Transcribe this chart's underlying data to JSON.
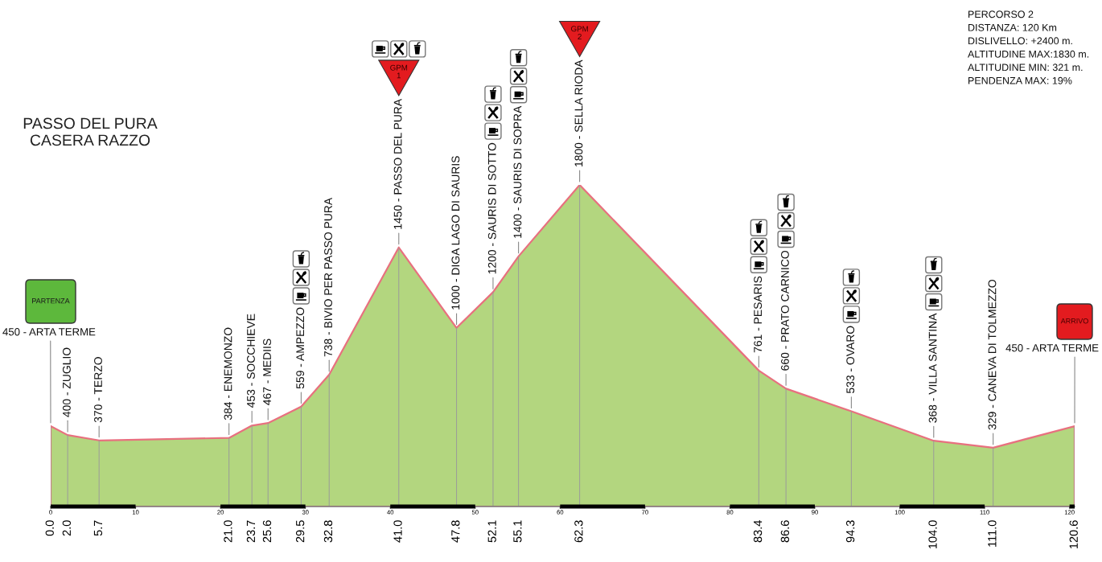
{
  "chart_data": {
    "type": "area",
    "title": "PASSO DEL PURA\nCASERA RAZZO",
    "x": [
      0.0,
      2.0,
      5.7,
      21.0,
      23.7,
      25.6,
      29.5,
      32.8,
      41.0,
      47.8,
      52.1,
      55.1,
      62.3,
      83.4,
      86.6,
      94.3,
      104.0,
      111.0,
      120.6
    ],
    "values": [
      450,
      400,
      370,
      384,
      453,
      467,
      559,
      738,
      1450,
      1000,
      1200,
      1400,
      1800,
      761,
      660,
      533,
      368,
      329,
      450
    ],
    "value_labels": [
      "450 - ARTA TERME",
      "400 - ZUGLIO",
      "370 - TERZO",
      "384 - ENEMONZO",
      "453 - SOCCHIEVE",
      "467 - MEDIIS",
      "559 - AMPEZZO",
      "738 - BIVIO PER PASSO PURA",
      "1450 - PASSO DEL PURA",
      "1000 - DIGA LAGO DI SAURIS",
      "1200 - SAURIS DI SOTTO",
      "1400 - SAURIS DI SOPRA",
      "1800 - SELLA RIODA",
      "761 - PESARIS",
      "660 - PRATO CARNICO",
      "533 - OVARO",
      "368 - VILLA SANTINA",
      "329 - CANEVA DI TOLMEZZO",
      "450 - ARTA TERME"
    ],
    "color": "#b3d67f",
    "grid": "x",
    "xlim": [
      0,
      120.6
    ],
    "xticks": [
      {
        "value": 0,
        "label": "0.0"
      },
      {
        "value": 2,
        "label": "2.0"
      },
      5.7,
      {
        "value": 21,
        "label": "21.0"
      },
      23.7,
      25.6,
      29.5,
      32.8,
      {
        "value": 41,
        "label": "41.0"
      },
      47.8,
      52.1,
      55.1,
      62.3,
      83.4,
      86.6,
      94.3,
      {
        "value": 104,
        "label": "104.0"
      },
      {
        "value": 111,
        "label": "111.0"
      },
      120.6
    ],
    "x2lim": [
      0,
      120.6
    ],
    "x2ticks": [
      0,
      10,
      20,
      30,
      40,
      50,
      60,
      70,
      80,
      90,
      100,
      110,
      120
    ],
    "tick_labels": "x",
    "annotations": [
      "PERCORSO 2",
      "DISTANZA: 120 Km",
      "DISLIVELLO: +2400 m.",
      "ALTITUDINE MAX:1830 m.",
      "ALTITUDINE MIN: 321 m.",
      "PENDENZA MAX: 19%",
      "PARTENZA",
      "GPM\n1",
      "GPM\n2",
      "ARRIVO"
    ]
  }
}
